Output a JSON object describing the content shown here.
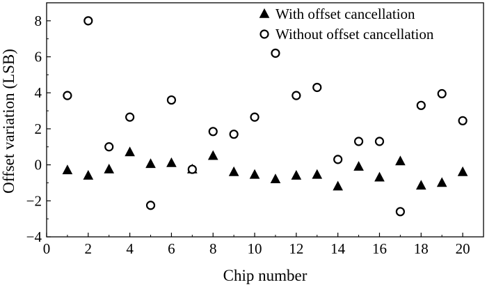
{
  "chart_data": {
    "type": "scatter",
    "title": "",
    "xlabel": "Chip number",
    "ylabel": "Offset variation (LSB)",
    "xlim": [
      0,
      21
    ],
    "ylim": [
      -4,
      9
    ],
    "x_ticks": [
      0,
      2,
      4,
      6,
      8,
      10,
      12,
      14,
      16,
      18,
      20
    ],
    "y_ticks": [
      -4,
      -2,
      0,
      2,
      4,
      6,
      8
    ],
    "legend_position": "top-right",
    "grid": false,
    "series": [
      {
        "name": "With offset cancellation",
        "marker": "filled-triangle",
        "color": "#000000",
        "x": [
          1,
          2,
          3,
          4,
          5,
          6,
          7,
          8,
          9,
          10,
          11,
          12,
          13,
          14,
          15,
          16,
          17,
          18,
          19,
          20
        ],
        "y": [
          -0.3,
          -0.6,
          -0.25,
          0.7,
          0.05,
          0.1,
          -0.25,
          0.5,
          -0.4,
          -0.55,
          -0.8,
          -0.6,
          -0.55,
          -1.2,
          -0.1,
          -0.7,
          0.2,
          -1.15,
          -1.0,
          -0.4
        ]
      },
      {
        "name": "Without offset cancellation",
        "marker": "hollow-circle",
        "color": "#000000",
        "x": [
          1,
          2,
          3,
          4,
          5,
          6,
          7,
          8,
          9,
          10,
          11,
          12,
          13,
          14,
          15,
          16,
          17,
          18,
          19,
          20
        ],
        "y": [
          3.85,
          8.0,
          1.0,
          2.65,
          -2.25,
          3.6,
          -0.25,
          1.85,
          1.7,
          2.65,
          6.2,
          3.85,
          4.3,
          0.3,
          1.3,
          1.3,
          -2.6,
          3.3,
          3.95,
          2.45
        ]
      }
    ]
  }
}
